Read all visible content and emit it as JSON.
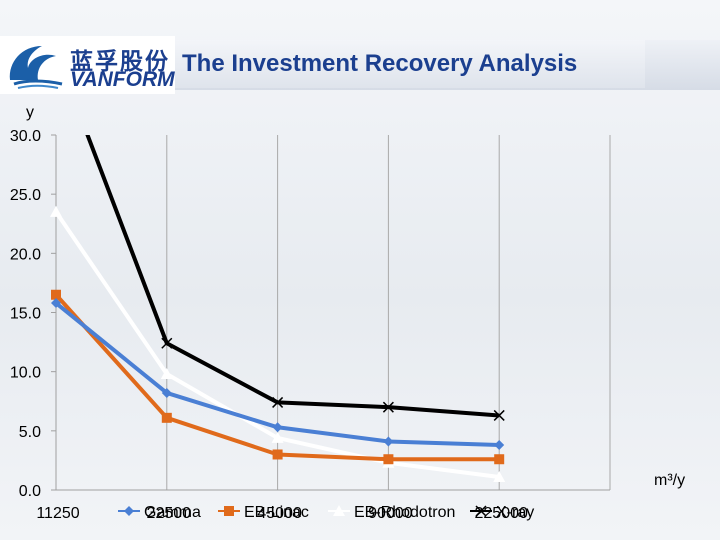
{
  "header": {
    "logo_cn": "蓝孚股份",
    "logo_en": "VANFORM",
    "title": "The Investment Recovery Analysis"
  },
  "chart_data": {
    "type": "line",
    "title": "The Investment Recovery Analysis",
    "xlabel": "m³/y",
    "ylabel": "y",
    "x": [
      11250,
      22500,
      45000,
      90000,
      225000
    ],
    "x_tick_labels": [
      "11250",
      "22500",
      "45000",
      "90000",
      "225000"
    ],
    "ylim": [
      0,
      30
    ],
    "y_ticks": [
      "0.0",
      "5.0",
      "10.0",
      "15.0",
      "20.0",
      "25.0",
      "30.0"
    ],
    "grid": "vertical",
    "legend_position": "bottom",
    "series": [
      {
        "name": "Gamma",
        "values": [
          15.8,
          8.2,
          5.3,
          4.1,
          3.8
        ],
        "color": "#4a7fd4",
        "marker": "diamond"
      },
      {
        "name": "EB-Linac",
        "values": [
          16.5,
          6.1,
          3.0,
          2.6,
          2.6
        ],
        "color": "#e06a1b",
        "marker": "square"
      },
      {
        "name": "EB-Rhodotron",
        "values": [
          23.5,
          9.8,
          4.4,
          2.3,
          1.1
        ],
        "color": "#ffffff",
        "marker": "triangle"
      },
      {
        "name": "X-ray",
        "values": [
          37.0,
          12.4,
          7.4,
          7.0,
          6.3
        ],
        "color": "#000000",
        "marker": "x"
      }
    ]
  }
}
